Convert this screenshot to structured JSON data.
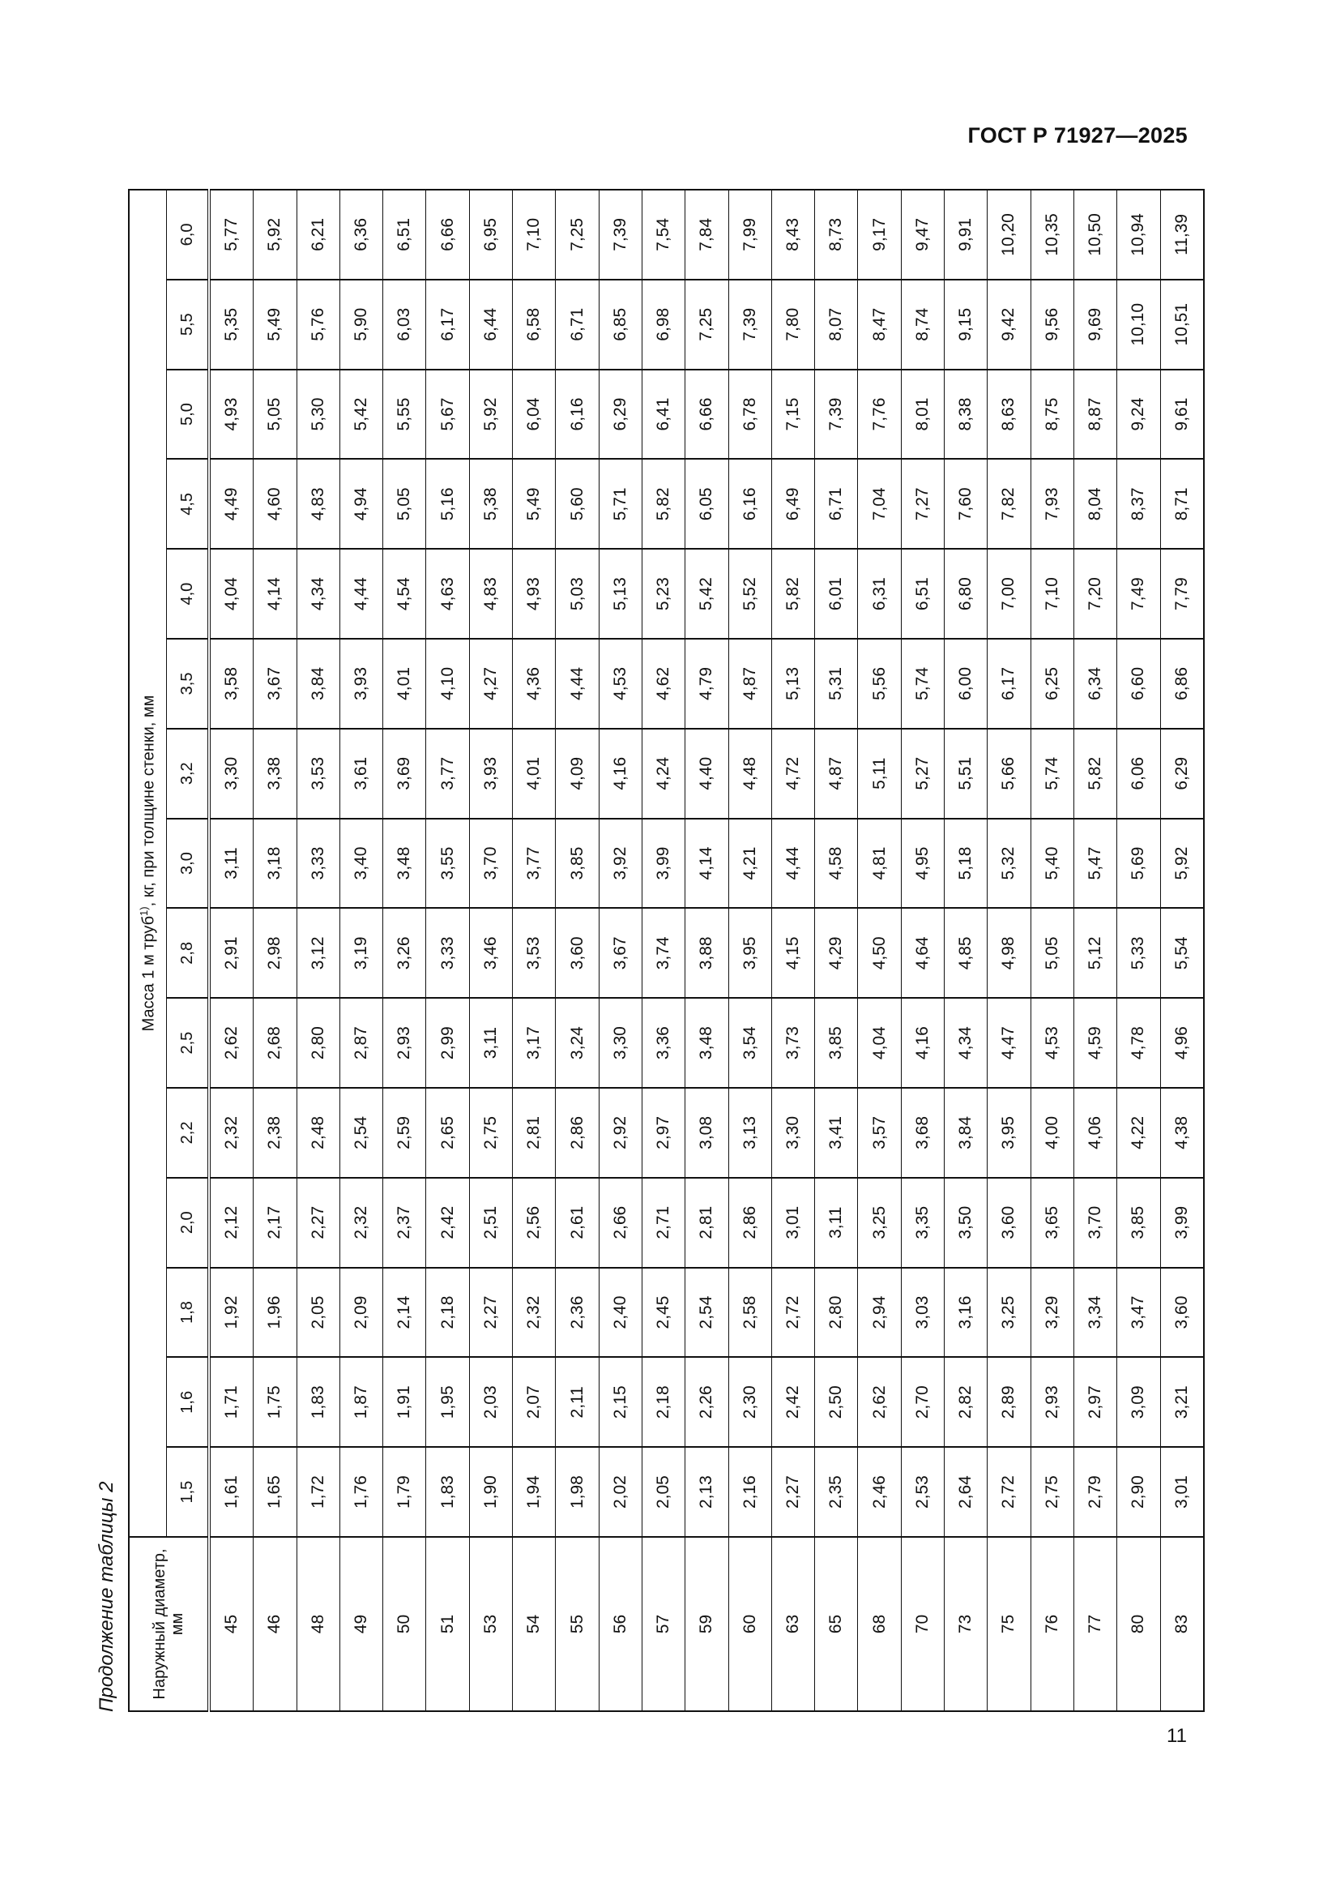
{
  "header": {
    "doc_code": "ГОСТ Р 71927—2025"
  },
  "page_number": "11",
  "caption": "Продолжение таблицы 2",
  "table": {
    "diameter_header": "Наружный диаметр, мм",
    "mass_header": {
      "before": "Масса 1 м труб",
      "sup": "1)",
      "after": ", кг, при толщине стенки, мм"
    },
    "thicknesses": [
      "1,5",
      "1,6",
      "1,8",
      "2,0",
      "2,2",
      "2,5",
      "2,8",
      "3,0",
      "3,2",
      "3,5",
      "4,0",
      "4,5",
      "5,0",
      "5,5",
      "6,0"
    ],
    "rows": [
      {
        "d": "45",
        "v": [
          "1,61",
          "1,71",
          "1,92",
          "2,12",
          "2,32",
          "2,62",
          "2,91",
          "3,11",
          "3,30",
          "3,58",
          "4,04",
          "4,49",
          "4,93",
          "5,35",
          "5,77"
        ]
      },
      {
        "d": "46",
        "v": [
          "1,65",
          "1,75",
          "1,96",
          "2,17",
          "2,38",
          "2,68",
          "2,98",
          "3,18",
          "3,38",
          "3,67",
          "4,14",
          "4,60",
          "5,05",
          "5,49",
          "5,92"
        ]
      },
      {
        "d": "48",
        "v": [
          "1,72",
          "1,83",
          "2,05",
          "2,27",
          "2,48",
          "2,80",
          "3,12",
          "3,33",
          "3,53",
          "3,84",
          "4,34",
          "4,83",
          "5,30",
          "5,76",
          "6,21"
        ]
      },
      {
        "d": "49",
        "v": [
          "1,76",
          "1,87",
          "2,09",
          "2,32",
          "2,54",
          "2,87",
          "3,19",
          "3,40",
          "3,61",
          "3,93",
          "4,44",
          "4,94",
          "5,42",
          "5,90",
          "6,36"
        ]
      },
      {
        "d": "50",
        "v": [
          "1,79",
          "1,91",
          "2,14",
          "2,37",
          "2,59",
          "2,93",
          "3,26",
          "3,48",
          "3,69",
          "4,01",
          "4,54",
          "5,05",
          "5,55",
          "6,03",
          "6,51"
        ]
      },
      {
        "d": "51",
        "v": [
          "1,83",
          "1,95",
          "2,18",
          "2,42",
          "2,65",
          "2,99",
          "3,33",
          "3,55",
          "3,77",
          "4,10",
          "4,63",
          "5,16",
          "5,67",
          "6,17",
          "6,66"
        ]
      },
      {
        "d": "53",
        "v": [
          "1,90",
          "2,03",
          "2,27",
          "2,51",
          "2,75",
          "3,11",
          "3,46",
          "3,70",
          "3,93",
          "4,27",
          "4,83",
          "5,38",
          "5,92",
          "6,44",
          "6,95"
        ]
      },
      {
        "d": "54",
        "v": [
          "1,94",
          "2,07",
          "2,32",
          "2,56",
          "2,81",
          "3,17",
          "3,53",
          "3,77",
          "4,01",
          "4,36",
          "4,93",
          "5,49",
          "6,04",
          "6,58",
          "7,10"
        ]
      },
      {
        "d": "55",
        "v": [
          "1,98",
          "2,11",
          "2,36",
          "2,61",
          "2,86",
          "3,24",
          "3,60",
          "3,85",
          "4,09",
          "4,44",
          "5,03",
          "5,60",
          "6,16",
          "6,71",
          "7,25"
        ]
      },
      {
        "d": "56",
        "v": [
          "2,02",
          "2,15",
          "2,40",
          "2,66",
          "2,92",
          "3,30",
          "3,67",
          "3,92",
          "4,16",
          "4,53",
          "5,13",
          "5,71",
          "6,29",
          "6,85",
          "7,39"
        ]
      },
      {
        "d": "57",
        "v": [
          "2,05",
          "2,18",
          "2,45",
          "2,71",
          "2,97",
          "3,36",
          "3,74",
          "3,99",
          "4,24",
          "4,62",
          "5,23",
          "5,82",
          "6,41",
          "6,98",
          "7,54"
        ]
      },
      {
        "d": "59",
        "v": [
          "2,13",
          "2,26",
          "2,54",
          "2,81",
          "3,08",
          "3,48",
          "3,88",
          "4,14",
          "4,40",
          "4,79",
          "5,42",
          "6,05",
          "6,66",
          "7,25",
          "7,84"
        ]
      },
      {
        "d": "60",
        "v": [
          "2,16",
          "2,30",
          "2,58",
          "2,86",
          "3,13",
          "3,54",
          "3,95",
          "4,21",
          "4,48",
          "4,87",
          "5,52",
          "6,16",
          "6,78",
          "7,39",
          "7,99"
        ]
      },
      {
        "d": "63",
        "v": [
          "2,27",
          "2,42",
          "2,72",
          "3,01",
          "3,30",
          "3,73",
          "4,15",
          "4,44",
          "4,72",
          "5,13",
          "5,82",
          "6,49",
          "7,15",
          "7,80",
          "8,43"
        ]
      },
      {
        "d": "65",
        "v": [
          "2,35",
          "2,50",
          "2,80",
          "3,11",
          "3,41",
          "3,85",
          "4,29",
          "4,58",
          "4,87",
          "5,31",
          "6,01",
          "6,71",
          "7,39",
          "8,07",
          "8,73"
        ]
      },
      {
        "d": "68",
        "v": [
          "2,46",
          "2,62",
          "2,94",
          "3,25",
          "3,57",
          "4,04",
          "4,50",
          "4,81",
          "5,11",
          "5,56",
          "6,31",
          "7,04",
          "7,76",
          "8,47",
          "9,17"
        ]
      },
      {
        "d": "70",
        "v": [
          "2,53",
          "2,70",
          "3,03",
          "3,35",
          "3,68",
          "4,16",
          "4,64",
          "4,95",
          "5,27",
          "5,74",
          "6,51",
          "7,27",
          "8,01",
          "8,74",
          "9,47"
        ]
      },
      {
        "d": "73",
        "v": [
          "2,64",
          "2,82",
          "3,16",
          "3,50",
          "3,84",
          "4,34",
          "4,85",
          "5,18",
          "5,51",
          "6,00",
          "6,80",
          "7,60",
          "8,38",
          "9,15",
          "9,91"
        ]
      },
      {
        "d": "75",
        "v": [
          "2,72",
          "2,89",
          "3,25",
          "3,60",
          "3,95",
          "4,47",
          "4,98",
          "5,32",
          "5,66",
          "6,17",
          "7,00",
          "7,82",
          "8,63",
          "9,42",
          "10,20"
        ]
      },
      {
        "d": "76",
        "v": [
          "2,75",
          "2,93",
          "3,29",
          "3,65",
          "4,00",
          "4,53",
          "5,05",
          "5,40",
          "5,74",
          "6,25",
          "7,10",
          "7,93",
          "8,75",
          "9,56",
          "10,35"
        ]
      },
      {
        "d": "77",
        "v": [
          "2,79",
          "2,97",
          "3,34",
          "3,70",
          "4,06",
          "4,59",
          "5,12",
          "5,47",
          "5,82",
          "6,34",
          "7,20",
          "8,04",
          "8,87",
          "9,69",
          "10,50"
        ]
      },
      {
        "d": "80",
        "v": [
          "2,90",
          "3,09",
          "3,47",
          "3,85",
          "4,22",
          "4,78",
          "5,33",
          "5,69",
          "6,06",
          "6,60",
          "7,49",
          "8,37",
          "9,24",
          "10,10",
          "10,94"
        ]
      },
      {
        "d": "83",
        "v": [
          "3,01",
          "3,21",
          "3,60",
          "3,99",
          "4,38",
          "4,96",
          "5,54",
          "5,92",
          "6,29",
          "6,86",
          "7,79",
          "8,71",
          "9,61",
          "10,51",
          "11,39"
        ]
      }
    ]
  }
}
